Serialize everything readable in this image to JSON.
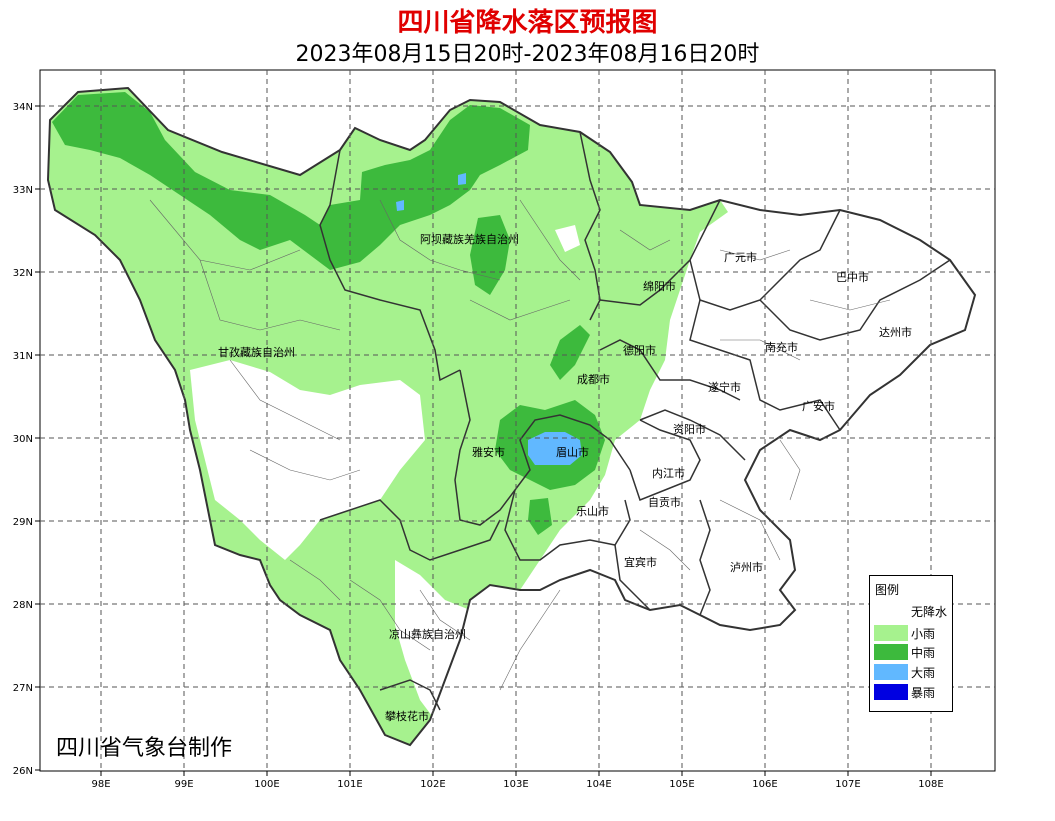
{
  "title": "四川省降水落区预报图",
  "subtitle": "2023年08月15日20时-2023年08月16日20时",
  "credit": "四川省气象台制作",
  "axes": {
    "lon_labels": [
      "98E",
      "99E",
      "100E",
      "101E",
      "102E",
      "103E",
      "104E",
      "105E",
      "106E",
      "107E",
      "108E"
    ],
    "lat_labels": [
      "34N",
      "33N",
      "32N",
      "31N",
      "30N",
      "29N",
      "28N",
      "27N",
      "26N"
    ]
  },
  "cities": [
    {
      "id": "aba",
      "name": "阿坝藏族羌族自治州"
    },
    {
      "id": "ganzi",
      "name": "甘孜藏族自治州"
    },
    {
      "id": "liangshan",
      "name": "凉山彝族自治州"
    },
    {
      "id": "panzhihua",
      "name": "攀枝花市"
    },
    {
      "id": "guangyuan",
      "name": "广元市"
    },
    {
      "id": "bazhong",
      "name": "巴中市"
    },
    {
      "id": "mianyang",
      "name": "绵阳市"
    },
    {
      "id": "dazhou",
      "name": "达州市"
    },
    {
      "id": "nanchong",
      "name": "南充市"
    },
    {
      "id": "deyang",
      "name": "德阳市"
    },
    {
      "id": "suining",
      "name": "遂宁市"
    },
    {
      "id": "chengdu",
      "name": "成都市"
    },
    {
      "id": "guangan",
      "name": "广安市"
    },
    {
      "id": "ziyang",
      "name": "资阳市"
    },
    {
      "id": "yaan",
      "name": "雅安市"
    },
    {
      "id": "meishan",
      "name": "眉山市"
    },
    {
      "id": "neijiang",
      "name": "内江市"
    },
    {
      "id": "zigong",
      "name": "自贡市"
    },
    {
      "id": "leshan",
      "name": "乐山市"
    },
    {
      "id": "yibin",
      "name": "宜宾市"
    },
    {
      "id": "luzhou",
      "name": "泸州市"
    }
  ],
  "legend": {
    "title": "图例",
    "items": [
      {
        "label": "无降水",
        "color": "#ffffff"
      },
      {
        "label": "小雨",
        "color": "#a6f28e"
      },
      {
        "label": "中雨",
        "color": "#3dba3d"
      },
      {
        "label": "大雨",
        "color": "#61b8ff"
      },
      {
        "label": "暴雨",
        "color": "#0000e1"
      }
    ]
  }
}
